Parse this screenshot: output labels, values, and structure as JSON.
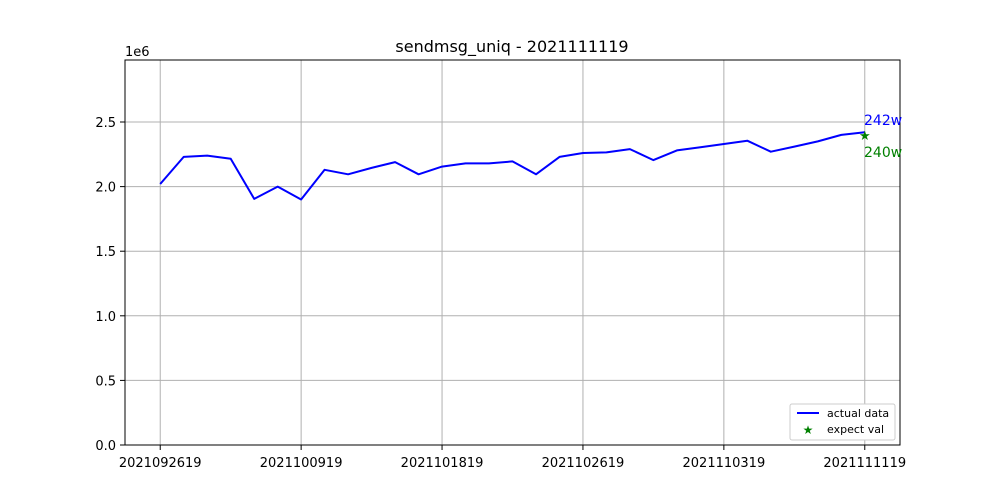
{
  "chart_data": {
    "type": "line",
    "title": "sendmsg_uniq - 2021111119",
    "xlabel": "",
    "ylabel": "",
    "y_scale_label": "1e6",
    "ylim": [
      0,
      2.98
    ],
    "xlim": [
      -1.5,
      31.5
    ],
    "yticks": [
      0.0,
      0.5,
      1.0,
      1.5,
      2.0,
      2.5
    ],
    "ytick_labels": [
      "0.0",
      "0.5",
      "1.0",
      "1.5",
      "2.0",
      "2.5"
    ],
    "xticks": [
      0,
      6,
      12,
      18,
      24,
      30
    ],
    "xtick_labels": [
      "2021092619",
      "2021100919",
      "2021101819",
      "2021102619",
      "2021110319",
      "2021111119"
    ],
    "grid": true,
    "legend_position": "lower-right",
    "series": [
      {
        "name": "actual data",
        "color": "#0000ff",
        "x": [
          0,
          1,
          2,
          3,
          4,
          5,
          6,
          7,
          8,
          9,
          10,
          11,
          12,
          13,
          14,
          15,
          16,
          17,
          18,
          19,
          20,
          21,
          22,
          23,
          24,
          25,
          26,
          27,
          28,
          29,
          30
        ],
        "values": [
          2.02,
          2.23,
          2.24,
          2.215,
          1.905,
          2.0,
          1.9,
          2.13,
          2.095,
          2.145,
          2.19,
          2.095,
          2.155,
          2.18,
          2.18,
          2.195,
          2.095,
          2.23,
          2.26,
          2.265,
          2.29,
          2.205,
          2.28,
          2.305,
          2.33,
          2.355,
          2.27,
          2.31,
          2.35,
          2.4,
          2.42
        ]
      }
    ],
    "expected": {
      "name": "expect val",
      "color": "#008000",
      "x": 30,
      "value": 2.4
    },
    "annotations": [
      {
        "text": "242w",
        "color": "#0000ff"
      },
      {
        "text": "240w",
        "color": "#008000"
      }
    ]
  }
}
